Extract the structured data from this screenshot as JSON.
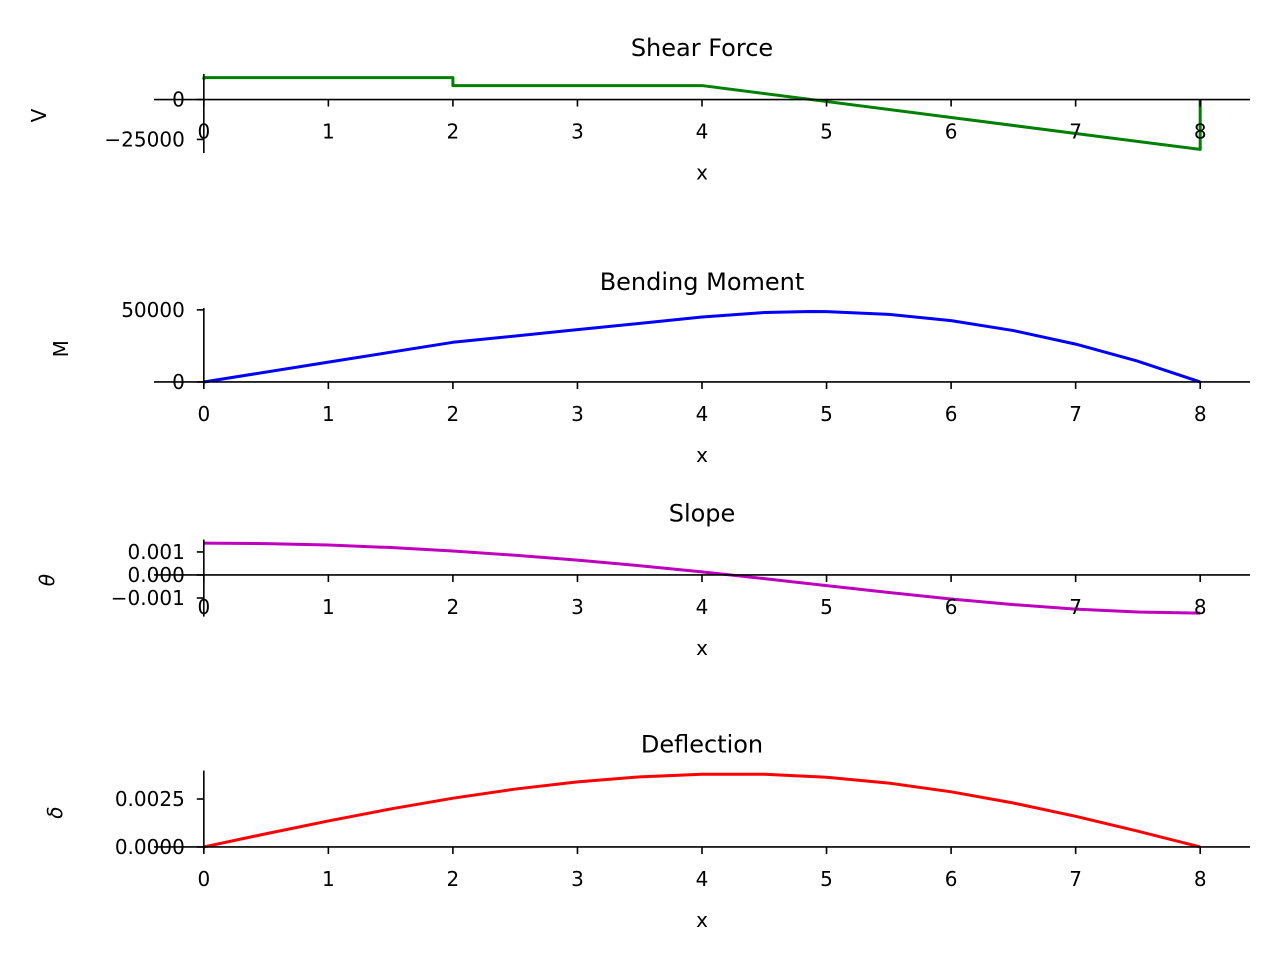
{
  "chart_data": [
    {
      "type": "line",
      "title": "Shear Force",
      "xlabel": "x",
      "ylabel": "V",
      "color": "#008000",
      "xlim": [
        -0.4,
        8.4
      ],
      "ylim": [
        -33500,
        16000
      ],
      "xticks": [
        0,
        1,
        2,
        3,
        4,
        5,
        6,
        7,
        8
      ],
      "xtick_labels": [
        "0",
        "1",
        "2",
        "3",
        "4",
        "5",
        "6",
        "7",
        "8"
      ],
      "yticks": [
        -25000,
        0
      ],
      "ytick_labels": [
        "−25000",
        "0"
      ],
      "x": [
        0,
        0,
        2,
        2,
        4,
        8,
        8
      ],
      "y": [
        12500,
        13750,
        13750,
        8750,
        8750,
        -31250,
        0
      ]
    },
    {
      "type": "line",
      "title": "Bending Moment",
      "xlabel": "x",
      "ylabel": "M",
      "color": "#0000ff",
      "xlim": [
        -0.4,
        8.4
      ],
      "ylim": [
        -2441,
        51270
      ],
      "xticks": [
        0,
        1,
        2,
        3,
        4,
        5,
        6,
        7,
        8
      ],
      "xtick_labels": [
        "0",
        "1",
        "2",
        "3",
        "4",
        "5",
        "6",
        "7",
        "8"
      ],
      "yticks": [
        0,
        50000
      ],
      "ytick_labels": [
        "0",
        "50000"
      ],
      "x": [
        0,
        1,
        2,
        3,
        4,
        4.5,
        4.875,
        5,
        5.5,
        6,
        6.5,
        7,
        7.5,
        8
      ],
      "y": [
        0,
        13750,
        27500,
        36250,
        45000,
        48125,
        48828,
        48750,
        46875,
        42500,
        35625,
        26250,
        14375,
        0
      ]
    },
    {
      "type": "line",
      "title": "Slope",
      "xlabel": "x",
      "ylabel": "θ",
      "color": "#bf00bf",
      "xlim": [
        -0.4,
        8.4
      ],
      "ylim": [
        -0.001808,
        0.001537
      ],
      "xticks": [
        0,
        1,
        2,
        3,
        4,
        5,
        6,
        7,
        8
      ],
      "xtick_labels": [
        "0",
        "1",
        "2",
        "3",
        "4",
        "5",
        "6",
        "7",
        "8"
      ],
      "yticks": [
        -0.001,
        0,
        0.001
      ],
      "ytick_labels": [
        "−0.001",
        "0.000",
        "0.001"
      ],
      "x": [
        0,
        0.5,
        1,
        1.5,
        2,
        2.5,
        3,
        3.5,
        4,
        4.5,
        5,
        5.5,
        6,
        6.5,
        7,
        7.5,
        8
      ],
      "y": [
        0.001385,
        0.001364,
        0.0013,
        0.001192,
        0.001042,
        0.000856,
        0.000643,
        0.000403,
        0.000135,
        -0.000157,
        -0.000461,
        -0.000761,
        -0.001042,
        -0.001287,
        -0.001482,
        -0.00161,
        -0.001656
      ]
    },
    {
      "type": "line",
      "title": "Deflection",
      "xlabel": "x",
      "ylabel": "δ",
      "color": "#ff0000",
      "xlim": [
        -0.4,
        8.4
      ],
      "ylim": [
        -0.00019,
        0.00398
      ],
      "xticks": [
        0,
        1,
        2,
        3,
        4,
        5,
        6,
        7,
        8
      ],
      "xtick_labels": [
        "0",
        "1",
        "2",
        "3",
        "4",
        "5",
        "6",
        "7",
        "8"
      ],
      "yticks": [
        0,
        0.0025
      ],
      "ytick_labels": [
        "0.0000",
        "0.0025"
      ],
      "x": [
        0,
        0.5,
        1,
        1.5,
        2,
        2.5,
        3,
        3.5,
        4,
        4.5,
        5,
        5.5,
        6,
        6.5,
        7,
        7.5,
        8
      ],
      "y": [
        0,
        0.000689,
        0.001357,
        0.001981,
        0.002542,
        0.003017,
        0.003393,
        0.003656,
        0.003792,
        0.003787,
        0.003633,
        0.003327,
        0.002875,
        0.002291,
        0.001596,
        0.00082,
        0
      ]
    }
  ]
}
